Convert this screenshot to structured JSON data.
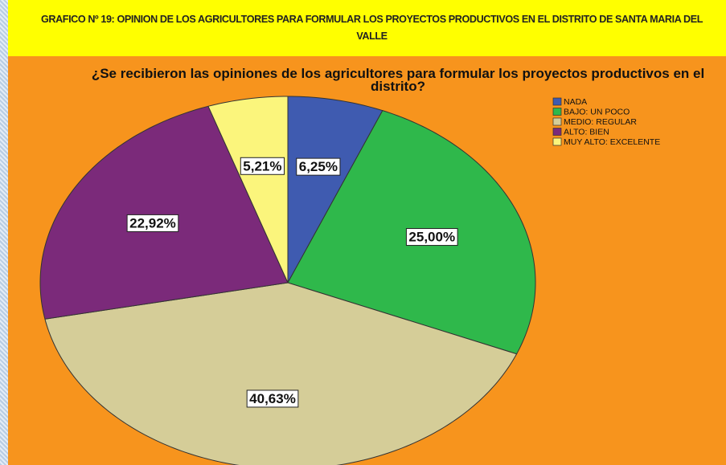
{
  "chart_data": {
    "type": "pie",
    "heading": "GRAFICO Nº 19: OPINION DE LOS AGRICULTORES PARA FORMULAR LOS PROYECTOS PRODUCTIVOS EN EL DISTRITO DE SANTA MARIA DEL VALLE",
    "title": "¿Se recibieron las opiniones de los agricultores para formular los proyectos productivos en el distrito?",
    "categories": [
      "NADA",
      "BAJO: UN POCO",
      "MEDIO: REGULAR",
      "ALTO: BIEN",
      "MUY ALTO: EXCELENTE"
    ],
    "values": [
      6.25,
      25.0,
      40.63,
      22.92,
      5.21
    ],
    "value_labels": [
      "6,25%",
      "25,00%",
      "40,63%",
      "22,92%",
      "5,21%"
    ],
    "colors": [
      "#3f5bb0",
      "#2fb84b",
      "#d5cd98",
      "#7b2a7a",
      "#fbf57c"
    ],
    "legend": "top-right"
  }
}
